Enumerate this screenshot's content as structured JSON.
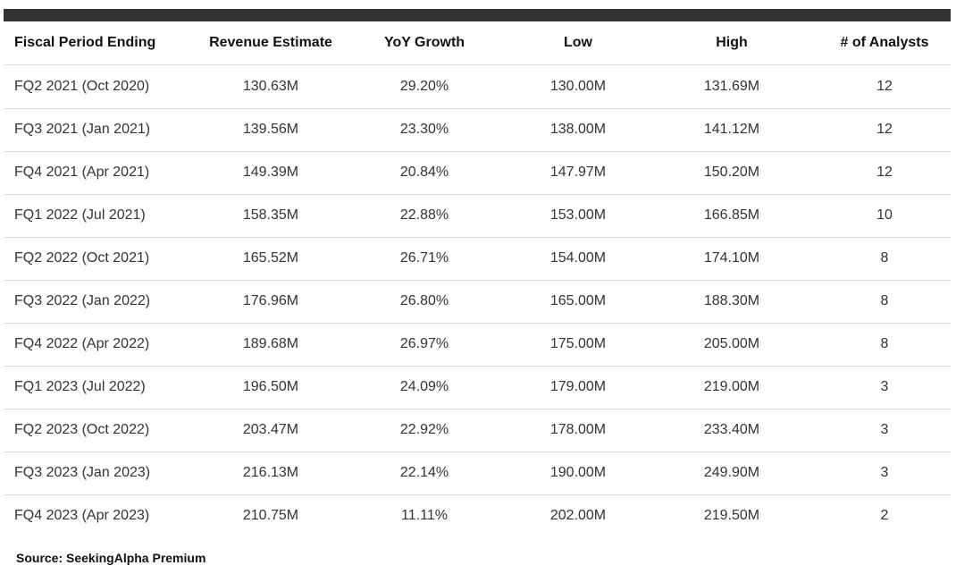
{
  "table": {
    "header": [
      "Fiscal Period Ending",
      "Revenue Estimate",
      "YoY Growth",
      "Low",
      "High",
      "# of Analysts"
    ],
    "rows": [
      [
        "FQ2 2021 (Oct 2020)",
        "130.63M",
        "29.20%",
        "130.00M",
        "131.69M",
        "12"
      ],
      [
        "FQ3 2021 (Jan 2021)",
        "139.56M",
        "23.30%",
        "138.00M",
        "141.12M",
        "12"
      ],
      [
        "FQ4 2021 (Apr 2021)",
        "149.39M",
        "20.84%",
        "147.97M",
        "150.20M",
        "12"
      ],
      [
        "FQ1 2022 (Jul 2021)",
        "158.35M",
        "22.88%",
        "153.00M",
        "166.85M",
        "10"
      ],
      [
        "FQ2 2022 (Oct 2021)",
        "165.52M",
        "26.71%",
        "154.00M",
        "174.10M",
        "8"
      ],
      [
        "FQ3 2022 (Jan 2022)",
        "176.96M",
        "26.80%",
        "165.00M",
        "188.30M",
        "8"
      ],
      [
        "FQ4 2022 (Apr 2022)",
        "189.68M",
        "26.97%",
        "175.00M",
        "205.00M",
        "8"
      ],
      [
        "FQ1 2023 (Jul 2022)",
        "196.50M",
        "24.09%",
        "179.00M",
        "219.00M",
        "3"
      ],
      [
        "FQ2 2023 (Oct 2022)",
        "203.47M",
        "22.92%",
        "178.00M",
        "233.40M",
        "3"
      ],
      [
        "FQ3 2023 (Jan 2023)",
        "216.13M",
        "22.14%",
        "190.00M",
        "249.90M",
        "3"
      ],
      [
        "FQ4 2023 (Apr 2023)",
        "210.75M",
        "11.11%",
        "202.00M",
        "219.50M",
        "2"
      ]
    ]
  },
  "source": "Source: SeekingAlpha Premium"
}
